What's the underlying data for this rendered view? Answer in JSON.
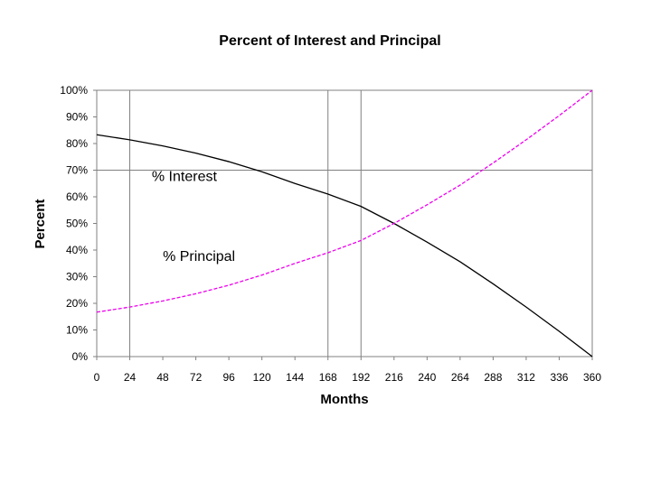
{
  "chart_data": {
    "type": "line",
    "title": "Percent of Interest and Principal",
    "xlabel": "Months",
    "ylabel": "Percent",
    "xlim": [
      0,
      360
    ],
    "ylim": [
      0,
      100
    ],
    "x_ticks": [
      0,
      24,
      48,
      72,
      96,
      120,
      144,
      168,
      192,
      216,
      240,
      264,
      288,
      312,
      336,
      360
    ],
    "y_ticks": [
      "0%",
      "10%",
      "20%",
      "30%",
      "40%",
      "50%",
      "60%",
      "70%",
      "80%",
      "90%",
      "100%"
    ],
    "grid": {
      "horizontal": [
        70
      ],
      "vertical": [
        24,
        168,
        192
      ]
    },
    "annotations": [
      {
        "text": "% Interest",
        "x": 40,
        "y": 66
      },
      {
        "text": "% Principal",
        "x": 48,
        "y": 36
      }
    ],
    "series": [
      {
        "color": "#000000",
        "dash": "solid",
        "points": [
          [
            0,
            83.3
          ],
          [
            24,
            81.4
          ],
          [
            48,
            79.1
          ],
          [
            72,
            76.4
          ],
          [
            96,
            73.2
          ],
          [
            120,
            69.4
          ],
          [
            144,
            65.0
          ],
          [
            168,
            61.0
          ],
          [
            192,
            56.4
          ],
          [
            216,
            50.0
          ],
          [
            240,
            43.0
          ],
          [
            264,
            35.6
          ],
          [
            288,
            27.3
          ],
          [
            312,
            18.6
          ],
          [
            336,
            9.5
          ],
          [
            360,
            0
          ]
        ]
      },
      {
        "color": "#ee00ee",
        "dash": "dashed",
        "points": [
          [
            0,
            16.7
          ],
          [
            24,
            18.6
          ],
          [
            48,
            20.9
          ],
          [
            72,
            23.6
          ],
          [
            96,
            26.8
          ],
          [
            120,
            30.6
          ],
          [
            144,
            35.0
          ],
          [
            168,
            39.0
          ],
          [
            192,
            43.6
          ],
          [
            216,
            50.0
          ],
          [
            240,
            57.0
          ],
          [
            264,
            64.4
          ],
          [
            288,
            72.7
          ],
          [
            312,
            81.4
          ],
          [
            336,
            90.5
          ],
          [
            360,
            100
          ]
        ]
      }
    ]
  }
}
